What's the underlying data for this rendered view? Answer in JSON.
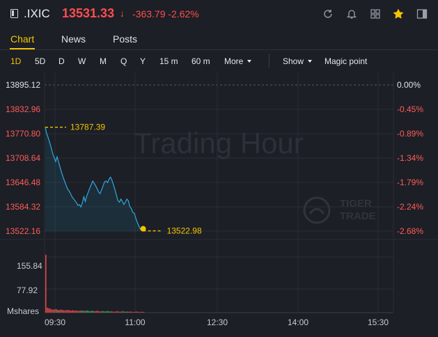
{
  "header": {
    "symbol": ".IXIC",
    "price": "13531.33",
    "arrow": "↓",
    "change": "-363.79",
    "change_pct": "-2.62%",
    "icons": [
      "refresh-icon",
      "bell-icon",
      "grid-icon",
      "star-icon",
      "panel-icon"
    ],
    "accent": "#f5c400",
    "down_color": "#ff4d4f"
  },
  "tabs": [
    {
      "label": "Chart",
      "active": true
    },
    {
      "label": "News",
      "active": false
    },
    {
      "label": "Posts",
      "active": false
    }
  ],
  "toolbar": {
    "periods": [
      "1D",
      "5D",
      "D",
      "W",
      "M",
      "Q",
      "Y",
      "15 m",
      "60 m"
    ],
    "active_period": "1D",
    "more_label": "More",
    "show_label": "Show",
    "magic_label": "Magic point"
  },
  "watermark": {
    "text": "Trading Hour",
    "logo_line1": "TIGER",
    "logo_line2": "TRADE"
  },
  "chart_data": {
    "type": "line",
    "series": [
      {
        "values": [
          13787.39,
          13770.8,
          13760,
          13748,
          13735,
          13720,
          13710,
          13700,
          13712,
          13698,
          13685,
          13672,
          13660,
          13650,
          13640,
          13630,
          13625,
          13618,
          13610,
          13605,
          13600,
          13595,
          13588,
          13590,
          13584,
          13595,
          13610,
          13598,
          13612,
          13622,
          13632,
          13641,
          13650,
          13644,
          13638,
          13630,
          13622,
          13618,
          13628,
          13638,
          13648,
          13650,
          13646,
          13655,
          13660,
          13652,
          13640,
          13628,
          13614,
          13600,
          13596,
          13604,
          13598,
          13590,
          13596,
          13604,
          13600,
          13585,
          13580,
          13570,
          13568,
          13556,
          13545,
          13536,
          13528,
          13524,
          13522.98
        ]
      }
    ],
    "x_ticks": [
      "09:30",
      "11:00",
      "12:30",
      "14:00",
      "15:30"
    ],
    "y_ticks": [
      "13895.12",
      "13832.96",
      "13770.80",
      "13708.64",
      "13646.48",
      "13584.32",
      "13522.16"
    ],
    "y_pct_ticks": [
      "0.00%",
      "-0.45%",
      "-0.89%",
      "-1.34%",
      "-1.79%",
      "-2.24%",
      "-2.68%"
    ],
    "ylim": [
      13522.16,
      13895.12
    ],
    "markers": {
      "open_label": "13787.39",
      "last_label": "13522.98"
    },
    "volume": {
      "ticks": [
        "155.84",
        "77.92"
      ],
      "unit": "Mshares",
      "ylim": [
        0,
        240
      ],
      "values": [
        210,
        18,
        16,
        14,
        12,
        11,
        12,
        13,
        10,
        9,
        11,
        10,
        9,
        8,
        9,
        10,
        8,
        7,
        9,
        8,
        7,
        8,
        6,
        7,
        8,
        7,
        6,
        7,
        8,
        6,
        5,
        7,
        6,
        5,
        6,
        7,
        5,
        4,
        6,
        5,
        4,
        5,
        6,
        4,
        5,
        4,
        3,
        4,
        5,
        4,
        3,
        4,
        5,
        4,
        3,
        4,
        3,
        4,
        3,
        2,
        3,
        4,
        3,
        2,
        3,
        2,
        3
      ]
    }
  }
}
